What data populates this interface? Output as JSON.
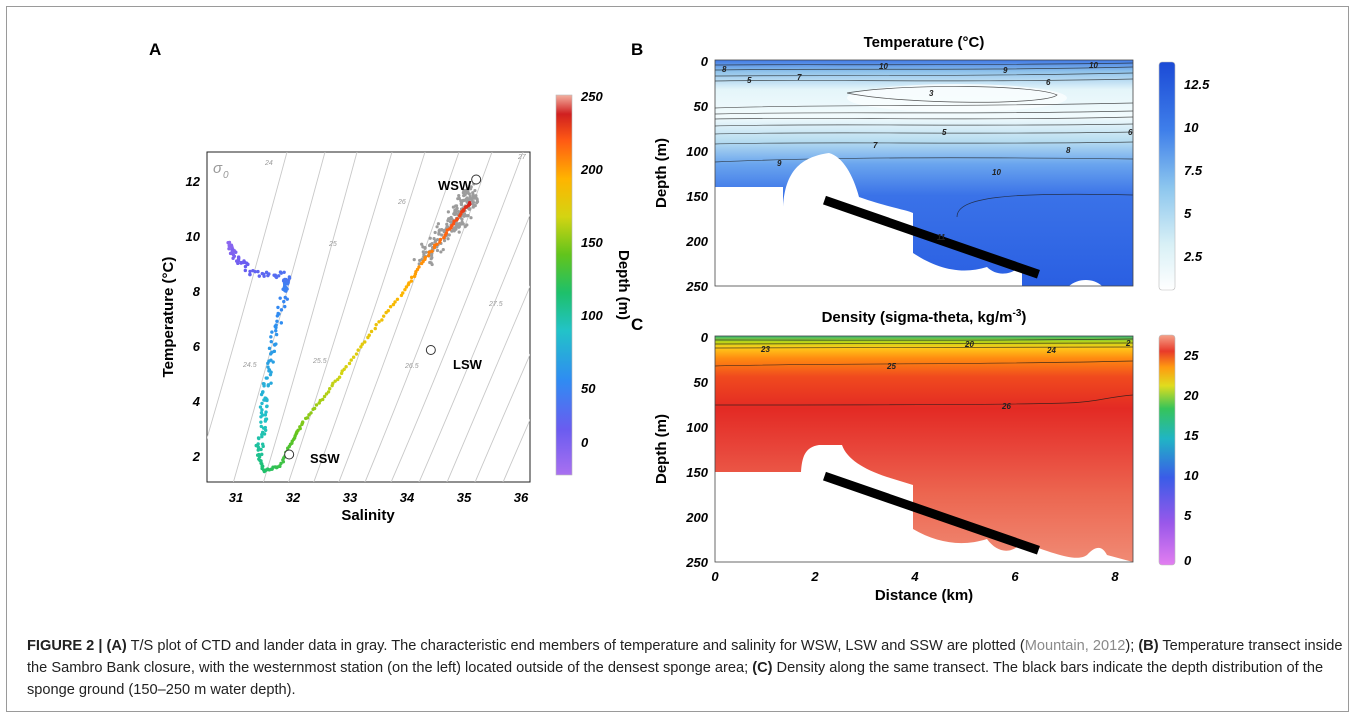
{
  "panelA": {
    "label": "A",
    "xlabel": "Salinity",
    "ylabel": "Temperature (°C)",
    "sigma_label": "σ",
    "sigma_sub": "0",
    "cb_label": "Depth (m)",
    "xticks": [
      "31",
      "32",
      "33",
      "34",
      "35",
      "36"
    ],
    "yticks": [
      "2",
      "4",
      "6",
      "8",
      "10",
      "12"
    ],
    "cb_ticks": [
      "250",
      "200",
      "150",
      "100",
      "50",
      "0"
    ],
    "isopycnal_labels": [
      "24",
      "24.5",
      "25",
      "25.5",
      "26",
      "26.5",
      "27",
      "27.5"
    ],
    "water_masses": [
      {
        "name": "WSW",
        "salinity": 35.25,
        "temperature": 12.0
      },
      {
        "name": "LSW",
        "salinity": 34.45,
        "temperature": 5.8
      },
      {
        "name": "SSW",
        "salinity": 31.95,
        "temperature": 2.0
      }
    ]
  },
  "panelB": {
    "label": "B",
    "title": "Temperature (°C)",
    "ylabel": "Depth (m)",
    "yticks": [
      "0",
      "50",
      "100",
      "150",
      "200",
      "250"
    ],
    "cb_ticks": [
      "12.5",
      "10",
      "7.5",
      "5",
      "2.5"
    ],
    "contour_labels": [
      "8",
      "5",
      "7",
      "10",
      "9",
      "6",
      "10",
      "3",
      "5",
      "7",
      "9",
      "8",
      "10",
      "11",
      "6"
    ]
  },
  "panelC": {
    "label": "C",
    "title_main": "Density (sigma-theta, kg/m",
    "title_sup": "-3",
    "title_end": ")",
    "xlabel": "Distance (km)",
    "ylabel": "Depth (m)",
    "xticks": [
      "0",
      "2",
      "4",
      "6",
      "8"
    ],
    "yticks": [
      "0",
      "50",
      "100",
      "150",
      "200",
      "250"
    ],
    "cb_ticks": [
      "25",
      "20",
      "15",
      "10",
      "5",
      "0"
    ],
    "contour_labels": [
      "23",
      "20",
      "24",
      "2",
      "25",
      "26"
    ]
  },
  "caption": {
    "figure_label": "FIGURE 2 |",
    "a_tag": "(A)",
    "a_text": " T/S plot of CTD and lander data in gray. The characteristic end members of temperature and salinity for WSW, LSW and SSW are plotted (",
    "citation_1": "Mountain,",
    "citation_2": "2012",
    "sep": "); ",
    "b_tag": "(B)",
    "b_text": " Temperature transect inside the Sambro Bank closure, with the westernmost station (on the left) located outside of the densest sponge area; ",
    "c_tag": "(C)",
    "c_text": " Density along the same transect. The black bars indicate the depth distribution of the sponge ground (150–250 m water depth)."
  },
  "chart_data": [
    {
      "type": "scatter",
      "panel": "A",
      "xlabel": "Salinity",
      "ylabel": "Temperature (°C)",
      "xlim": [
        30.5,
        36.2
      ],
      "ylim": [
        1.0,
        13.0
      ],
      "colorbar": {
        "label": "Depth (m)",
        "range": [
          -20,
          250
        ]
      },
      "series": [
        {
          "name": "CTD/lander cloud (gray)",
          "points": [
            [
              34.3,
              9.0
            ],
            [
              34.6,
              9.8
            ],
            [
              34.9,
              10.5
            ],
            [
              35.1,
              11.2
            ],
            [
              35.2,
              11.7
            ],
            [
              34.8,
              10.2
            ]
          ]
        },
        {
          "name": "Depth-colored profile",
          "points": [
            [
              30.9,
              9.7
            ],
            [
              31.0,
              9.2
            ],
            [
              31.3,
              8.6
            ],
            [
              31.9,
              8.5
            ],
            [
              31.9,
              8.0
            ],
            [
              31.7,
              6.5
            ],
            [
              31.6,
              5.0
            ],
            [
              31.5,
              4.0
            ],
            [
              31.5,
              3.0
            ],
            [
              31.4,
              2.0
            ],
            [
              31.5,
              1.4
            ],
            [
              31.8,
              1.6
            ],
            [
              32.0,
              2.5
            ],
            [
              32.2,
              3.2
            ],
            [
              32.6,
              4.2
            ],
            [
              33.0,
              5.3
            ],
            [
              33.5,
              6.7
            ],
            [
              34.0,
              8.0
            ],
            [
              34.3,
              9.0
            ],
            [
              34.7,
              10.0
            ],
            [
              35.0,
              10.8
            ],
            [
              35.15,
              11.2
            ]
          ]
        }
      ],
      "water_masses": [
        {
          "name": "WSW",
          "salinity": 35.25,
          "temperature": 12.0
        },
        {
          "name": "LSW",
          "salinity": 34.45,
          "temperature": 5.8
        },
        {
          "name": "SSW",
          "salinity": 31.95,
          "temperature": 2.0
        }
      ]
    },
    {
      "type": "heatmap",
      "panel": "B",
      "title": "Temperature (°C)",
      "xlim": [
        0,
        8.4
      ],
      "ylim": [
        250,
        0
      ],
      "ylabel": "Depth (m)",
      "colorbar": {
        "range": [
          1,
          14
        ]
      },
      "sponge_bar": {
        "from": {
          "distance_km": 2.2,
          "depth_m": 155
        },
        "to": {
          "distance_km": 6.5,
          "depth_m": 237
        }
      }
    },
    {
      "type": "heatmap",
      "panel": "C",
      "title": "Density (sigma-theta, kg/m-3)",
      "xlim": [
        0,
        8.4
      ],
      "ylim": [
        250,
        0
      ],
      "xlabel": "Distance (km)",
      "ylabel": "Depth (m)",
      "colorbar": {
        "range": [
          0,
          28
        ]
      },
      "contours": [
        {
          "value": 23,
          "depth_m": 8
        },
        {
          "value": 24,
          "depth_m": 10
        },
        {
          "value": 25,
          "depth_m": 32
        },
        {
          "value": 26,
          "depth_m": 75
        }
      ],
      "sponge_bar": {
        "from": {
          "distance_km": 2.2,
          "depth_m": 155
        },
        "to": {
          "distance_km": 6.5,
          "depth_m": 237
        }
      }
    }
  ]
}
